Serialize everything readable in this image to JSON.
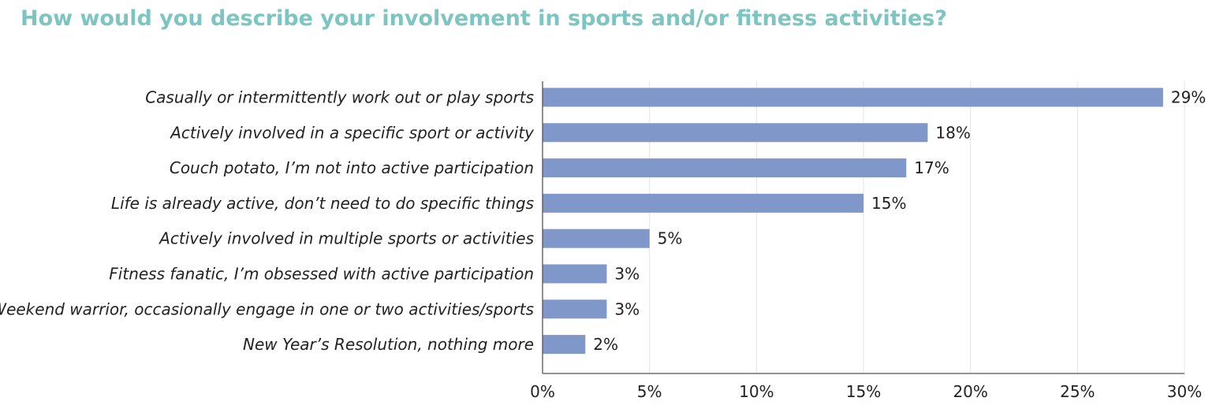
{
  "chart_data": {
    "type": "bar",
    "orientation": "horizontal",
    "title": "How would you describe your involvement in sports and/or fitness activities?",
    "xlabel": "",
    "ylabel": "",
    "categories": [
      "Casually or intermittently work out or play sports",
      "Actively involved in a specific sport or activity",
      "Couch potato, I’m not into active participation",
      "Life is already active, don’t need to do specific things",
      "Actively involved in multiple sports or activities",
      "Fitness fanatic, I’m obsessed with active participation",
      "Weekend warrior, occasionally engage in one or two activities/sports",
      "New Year’s Resolution, nothing more"
    ],
    "values": [
      29,
      18,
      17,
      15,
      5,
      3,
      3,
      2
    ],
    "value_labels": [
      "29%",
      "18%",
      "17%",
      "15%",
      "5%",
      "3%",
      "3%",
      "2%"
    ],
    "xlim": [
      0,
      30
    ],
    "x_ticks": [
      0,
      5,
      10,
      15,
      20,
      25,
      30
    ],
    "x_tick_labels": [
      "0%",
      "5%",
      "10%",
      "15%",
      "20%",
      "25%",
      "30%"
    ],
    "grid": "vertical",
    "legend": "none",
    "colors": {
      "bar": "#8097c9",
      "title": "#7cc5c1",
      "grid": "#e3e3e3",
      "axis": "#555555",
      "text": "#222222"
    }
  }
}
